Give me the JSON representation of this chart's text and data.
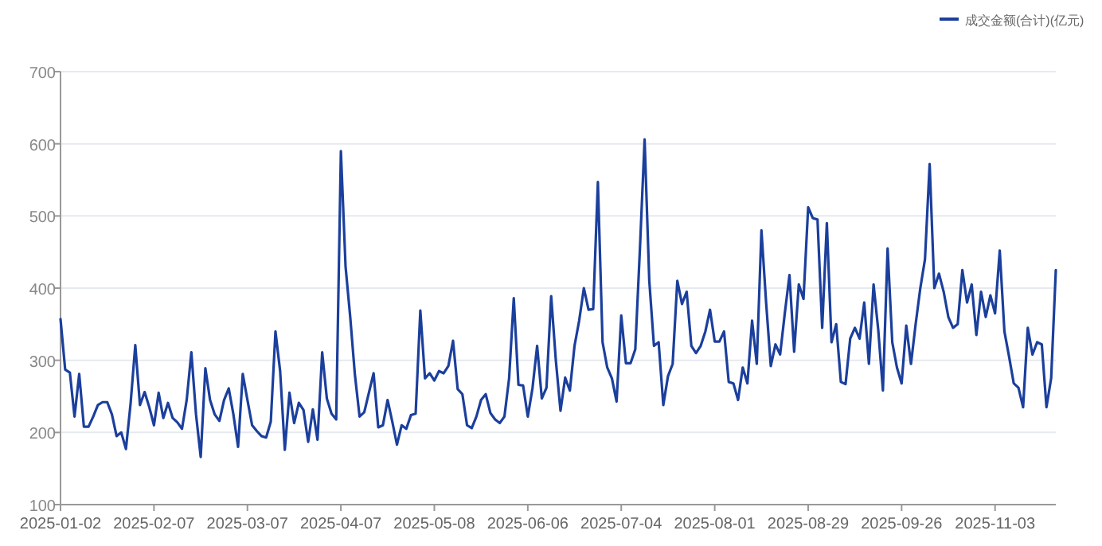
{
  "chart_data": {
    "type": "line",
    "legend": "top right",
    "grid": "y",
    "ylim": [
      100,
      700
    ],
    "yticks": [
      100,
      200,
      300,
      400,
      500,
      600,
      700
    ],
    "categories": [
      "2025-01-02",
      null,
      null,
      null,
      null,
      null,
      null,
      null,
      null,
      null,
      null,
      null,
      null,
      null,
      null,
      null,
      null,
      null,
      null,
      null,
      "2025-02-07",
      null,
      null,
      null,
      null,
      null,
      null,
      null,
      null,
      null,
      null,
      null,
      null,
      null,
      null,
      null,
      null,
      null,
      null,
      null,
      "2025-03-07",
      null,
      null,
      null,
      null,
      null,
      null,
      null,
      null,
      null,
      null,
      null,
      null,
      null,
      null,
      null,
      null,
      null,
      null,
      null,
      "2025-04-07",
      null,
      null,
      null,
      null,
      null,
      null,
      null,
      null,
      null,
      null,
      null,
      null,
      null,
      null,
      null,
      null,
      null,
      null,
      null,
      "2025-05-08",
      null,
      null,
      null,
      null,
      null,
      null,
      null,
      null,
      null,
      null,
      null,
      null,
      null,
      null,
      null,
      null,
      null,
      null,
      null,
      "2025-06-06",
      null,
      null,
      null,
      null,
      null,
      null,
      null,
      null,
      null,
      null,
      null,
      null,
      null,
      null,
      null,
      null,
      null,
      null,
      null,
      "2025-07-04",
      null,
      null,
      null,
      null,
      null,
      null,
      null,
      null,
      null,
      null,
      null,
      null,
      null,
      null,
      null,
      null,
      null,
      null,
      null,
      "2025-08-01",
      null,
      null,
      null,
      null,
      null,
      null,
      null,
      null,
      null,
      null,
      null,
      null,
      null,
      null,
      null,
      null,
      null,
      null,
      null,
      "2025-08-29",
      null,
      null,
      null,
      null,
      null,
      null,
      null,
      null,
      null,
      null,
      null,
      null,
      null,
      null,
      null,
      null,
      null,
      null,
      null,
      "2025-09-26",
      null,
      null,
      null,
      null,
      null,
      null,
      null,
      null,
      null,
      null,
      null,
      null,
      null,
      null,
      null,
      null,
      null,
      null,
      null,
      "2025-11-03",
      null,
      null,
      null,
      null,
      null,
      null,
      null,
      null,
      null,
      null,
      null,
      null,
      null
    ],
    "series": [
      {
        "name": "成交金额(合计)(亿元)",
        "color": "#1b3f9c",
        "values": [
          357,
          287,
          283,
          222,
          281,
          208,
          208,
          222,
          238,
          242,
          242,
          225,
          195,
          200,
          177,
          240,
          321,
          238,
          256,
          235,
          210,
          255,
          220,
          241,
          220,
          214,
          205,
          245,
          311,
          225,
          166,
          289,
          245,
          225,
          216,
          245,
          261,
          225,
          180,
          281,
          245,
          210,
          202,
          195,
          193,
          215,
          340,
          285,
          176,
          255,
          213,
          241,
          231,
          187,
          232,
          190,
          311,
          247,
          226,
          218,
          590,
          430,
          360,
          280,
          222,
          228,
          255,
          282,
          207,
          210,
          245,
          215,
          183,
          210,
          205,
          224,
          226,
          369,
          275,
          282,
          272,
          285,
          282,
          292,
          327,
          260,
          253,
          210,
          206,
          222,
          245,
          253,
          227,
          218,
          213,
          222,
          275,
          386,
          266,
          265,
          222,
          261,
          320,
          247,
          262,
          389,
          300,
          230,
          276,
          258,
          320,
          355,
          400,
          370,
          371,
          547,
          325,
          290,
          275,
          243,
          362,
          296,
          296,
          315,
          455,
          606,
          410,
          320,
          325,
          238,
          278,
          295,
          410,
          378,
          395,
          320,
          310,
          320,
          340,
          370,
          326,
          326,
          340,
          270,
          268,
          245,
          290,
          268,
          355,
          295,
          480,
          380,
          292,
          322,
          308,
          365,
          418,
          312,
          405,
          385,
          512,
          497,
          495,
          345,
          490,
          325,
          350,
          270,
          267,
          330,
          345,
          330,
          380,
          295,
          405,
          342,
          258,
          455,
          325,
          290,
          268,
          348,
          295,
          350,
          400,
          440,
          572,
          400,
          420,
          395,
          360,
          345,
          350,
          425,
          380,
          405,
          335,
          395,
          360,
          390,
          365,
          452,
          340,
          305,
          268,
          262,
          235,
          345,
          308,
          325,
          322,
          235,
          275,
          425
        ]
      }
    ]
  }
}
